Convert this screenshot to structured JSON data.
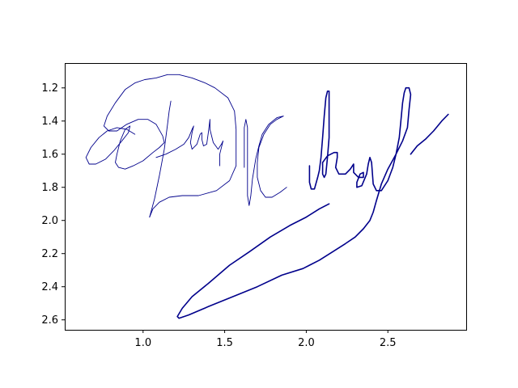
{
  "chart_data": {
    "type": "line",
    "title": "",
    "xlabel": "",
    "ylabel": "",
    "xlim": [
      0.52,
      2.98
    ],
    "ylim": [
      2.66,
      1.05
    ],
    "y_inverted": true,
    "grid": false,
    "legend": "none",
    "color": "#00008b",
    "x_ticks": [
      1.0,
      1.5,
      2.0,
      2.5
    ],
    "x_tick_labels": [
      "1.0",
      "1.5",
      "2.0",
      "2.5"
    ],
    "y_ticks": [
      1.2,
      1.4,
      1.6,
      1.8,
      2.0,
      2.2,
      2.4,
      2.6
    ],
    "y_tick_labels": [
      "1.2",
      "1.4",
      "1.6",
      "1.8",
      "2.0",
      "2.2",
      "2.4",
      "2.6"
    ],
    "strokes": [
      {
        "width": 0.9,
        "points": [
          [
            0.95,
            1.48
          ],
          [
            0.9,
            1.45
          ],
          [
            0.84,
            1.44
          ],
          [
            0.78,
            1.46
          ],
          [
            0.73,
            1.5
          ],
          [
            0.68,
            1.56
          ],
          [
            0.65,
            1.62
          ],
          [
            0.67,
            1.66
          ],
          [
            0.71,
            1.66
          ],
          [
            0.77,
            1.63
          ],
          [
            0.82,
            1.58
          ],
          [
            0.87,
            1.52
          ],
          [
            0.91,
            1.47
          ],
          [
            0.92,
            1.43
          ],
          [
            0.89,
            1.45
          ],
          [
            0.86,
            1.52
          ],
          [
            0.84,
            1.6
          ],
          [
            0.83,
            1.65
          ],
          [
            0.85,
            1.68
          ],
          [
            0.89,
            1.69
          ],
          [
            0.94,
            1.67
          ],
          [
            1.0,
            1.64
          ],
          [
            1.06,
            1.59
          ],
          [
            1.1,
            1.56
          ],
          [
            1.13,
            1.53
          ],
          [
            1.12,
            1.49
          ],
          [
            1.08,
            1.42
          ],
          [
            1.03,
            1.39
          ],
          [
            0.97,
            1.39
          ],
          [
            0.9,
            1.42
          ],
          [
            0.84,
            1.46
          ],
          [
            0.79,
            1.46
          ],
          [
            0.76,
            1.43
          ],
          [
            0.78,
            1.37
          ],
          [
            0.83,
            1.29
          ],
          [
            0.89,
            1.21
          ],
          [
            0.95,
            1.17
          ],
          [
            1.01,
            1.15
          ],
          [
            1.08,
            1.14
          ],
          [
            1.15,
            1.12
          ],
          [
            1.22,
            1.12
          ],
          [
            1.3,
            1.14
          ],
          [
            1.38,
            1.17
          ],
          [
            1.44,
            1.2
          ],
          [
            1.52,
            1.26
          ],
          [
            1.56,
            1.34
          ],
          [
            1.57,
            1.45
          ],
          [
            1.57,
            1.58
          ],
          [
            1.57,
            1.67
          ],
          [
            1.53,
            1.76
          ],
          [
            1.45,
            1.82
          ],
          [
            1.34,
            1.85
          ],
          [
            1.24,
            1.85
          ],
          [
            1.16,
            1.86
          ],
          [
            1.1,
            1.89
          ],
          [
            1.06,
            1.93
          ],
          [
            1.04,
            1.98
          ]
        ]
      },
      {
        "width": 0.9,
        "points": [
          [
            1.04,
            1.98
          ],
          [
            1.07,
            1.87
          ],
          [
            1.1,
            1.73
          ],
          [
            1.13,
            1.57
          ],
          [
            1.15,
            1.42
          ],
          [
            1.16,
            1.34
          ],
          [
            1.17,
            1.28
          ]
        ]
      },
      {
        "width": 0.9,
        "points": [
          [
            1.08,
            1.62
          ],
          [
            1.14,
            1.6
          ],
          [
            1.2,
            1.57
          ],
          [
            1.25,
            1.54
          ],
          [
            1.28,
            1.5
          ],
          [
            1.3,
            1.45
          ],
          [
            1.31,
            1.43
          ],
          [
            1.3,
            1.47
          ],
          [
            1.29,
            1.53
          ],
          [
            1.3,
            1.57
          ],
          [
            1.33,
            1.54
          ],
          [
            1.35,
            1.48
          ],
          [
            1.36,
            1.47
          ],
          [
            1.36,
            1.51
          ],
          [
            1.37,
            1.55
          ],
          [
            1.39,
            1.54
          ],
          [
            1.4,
            1.47
          ],
          [
            1.41,
            1.39
          ],
          [
            1.41,
            1.45
          ],
          [
            1.43,
            1.53
          ],
          [
            1.46,
            1.57
          ],
          [
            1.48,
            1.54
          ],
          [
            1.49,
            1.52
          ],
          [
            1.47,
            1.6
          ],
          [
            1.47,
            1.67
          ]
        ]
      },
      {
        "width": 0.9,
        "points": [
          [
            1.62,
            1.68
          ],
          [
            1.62,
            1.55
          ],
          [
            1.62,
            1.44
          ],
          [
            1.63,
            1.39
          ],
          [
            1.64,
            1.44
          ],
          [
            1.64,
            1.58
          ],
          [
            1.64,
            1.74
          ],
          [
            1.64,
            1.85
          ],
          [
            1.65,
            1.91
          ],
          [
            1.66,
            1.85
          ],
          [
            1.67,
            1.75
          ],
          [
            1.69,
            1.63
          ],
          [
            1.71,
            1.55
          ],
          [
            1.73,
            1.48
          ],
          [
            1.77,
            1.42
          ],
          [
            1.82,
            1.38
          ],
          [
            1.86,
            1.37
          ],
          [
            1.82,
            1.39
          ],
          [
            1.78,
            1.42
          ],
          [
            1.74,
            1.48
          ],
          [
            1.71,
            1.56
          ],
          [
            1.7,
            1.65
          ],
          [
            1.7,
            1.74
          ],
          [
            1.72,
            1.82
          ],
          [
            1.75,
            1.86
          ],
          [
            1.79,
            1.86
          ],
          [
            1.84,
            1.83
          ],
          [
            1.88,
            1.8
          ]
        ]
      },
      {
        "width": 1.6,
        "points": [
          [
            2.02,
            1.67
          ],
          [
            2.02,
            1.72
          ],
          [
            2.02,
            1.77
          ],
          [
            2.03,
            1.81
          ],
          [
            2.05,
            1.81
          ],
          [
            2.07,
            1.74
          ],
          [
            2.08,
            1.7
          ],
          [
            2.09,
            1.62
          ],
          [
            2.1,
            1.5
          ],
          [
            2.11,
            1.37
          ],
          [
            2.12,
            1.26
          ],
          [
            2.13,
            1.22
          ],
          [
            2.14,
            1.22
          ],
          [
            2.14,
            1.33
          ],
          [
            2.14,
            1.5
          ],
          [
            2.13,
            1.62
          ],
          [
            2.12,
            1.72
          ],
          [
            2.11,
            1.74
          ],
          [
            2.1,
            1.72
          ],
          [
            2.1,
            1.65
          ],
          [
            2.13,
            1.61
          ],
          [
            2.17,
            1.59
          ],
          [
            2.19,
            1.59
          ],
          [
            2.19,
            1.62
          ],
          [
            2.18,
            1.68
          ],
          [
            2.2,
            1.72
          ],
          [
            2.24,
            1.72
          ],
          [
            2.27,
            1.69
          ],
          [
            2.29,
            1.66
          ],
          [
            2.29,
            1.71
          ],
          [
            2.32,
            1.74
          ],
          [
            2.35,
            1.74
          ],
          [
            2.35,
            1.71
          ],
          [
            2.33,
            1.72
          ],
          [
            2.31,
            1.77
          ],
          [
            2.31,
            1.8
          ],
          [
            2.34,
            1.79
          ],
          [
            2.37,
            1.72
          ],
          [
            2.38,
            1.66
          ],
          [
            2.39,
            1.62
          ],
          [
            2.4,
            1.65
          ],
          [
            2.41,
            1.78
          ],
          [
            2.43,
            1.82
          ],
          [
            2.46,
            1.82
          ],
          [
            2.5,
            1.76
          ],
          [
            2.53,
            1.68
          ],
          [
            2.55,
            1.6
          ],
          [
            2.57,
            1.5
          ],
          [
            2.58,
            1.4
          ],
          [
            2.59,
            1.29
          ],
          [
            2.6,
            1.23
          ],
          [
            2.61,
            1.2
          ],
          [
            2.63,
            1.2
          ],
          [
            2.64,
            1.24
          ],
          [
            2.63,
            1.33
          ],
          [
            2.62,
            1.44
          ],
          [
            2.59,
            1.52
          ],
          [
            2.55,
            1.6
          ],
          [
            2.5,
            1.69
          ],
          [
            2.46,
            1.78
          ],
          [
            2.43,
            1.88
          ],
          [
            2.41,
            1.95
          ],
          [
            2.39,
            2.0
          ],
          [
            2.35,
            2.05
          ],
          [
            2.3,
            2.1
          ],
          [
            2.24,
            2.14
          ],
          [
            2.16,
            2.19
          ],
          [
            2.08,
            2.24
          ],
          [
            1.98,
            2.29
          ],
          [
            1.85,
            2.33
          ],
          [
            1.7,
            2.4
          ],
          [
            1.55,
            2.46
          ],
          [
            1.4,
            2.52
          ],
          [
            1.28,
            2.57
          ],
          [
            1.22,
            2.59
          ],
          [
            1.21,
            2.58
          ],
          [
            1.24,
            2.53
          ],
          [
            1.3,
            2.46
          ],
          [
            1.4,
            2.38
          ],
          [
            1.53,
            2.27
          ],
          [
            1.65,
            2.19
          ],
          [
            1.78,
            2.1
          ],
          [
            1.9,
            2.03
          ],
          [
            2.0,
            1.98
          ],
          [
            2.08,
            1.93
          ],
          [
            2.14,
            1.9
          ]
        ]
      },
      {
        "width": 1.6,
        "points": [
          [
            2.64,
            1.6
          ],
          [
            2.68,
            1.55
          ],
          [
            2.73,
            1.51
          ],
          [
            2.78,
            1.46
          ],
          [
            2.83,
            1.4
          ],
          [
            2.87,
            1.36
          ]
        ]
      }
    ]
  }
}
